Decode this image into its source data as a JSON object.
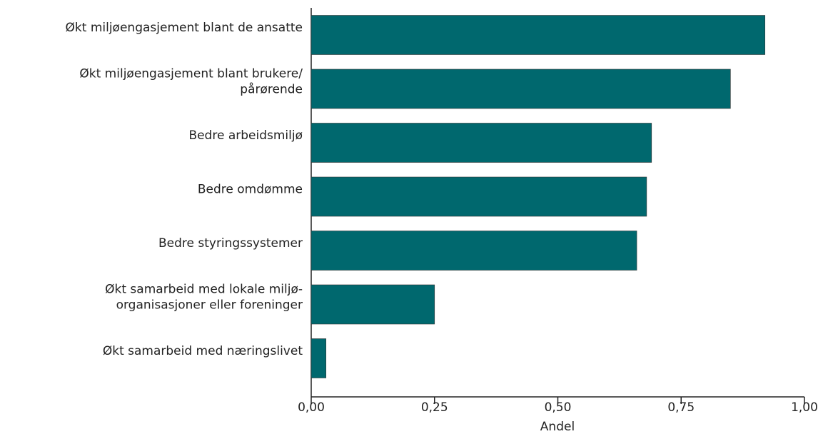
{
  "chart_data": {
    "type": "barh",
    "categories": [
      "Økt miljøengasjement blant de ansatte",
      "Økt miljøengasjement blant brukere/\npårørende",
      "Bedre arbeidsmiljø",
      "Bedre omdømme",
      "Bedre styringssystemer",
      "Økt samarbeid med lokale miljø-\norganisasjoner eller foreninger",
      "Økt samarbeid med næringslivet"
    ],
    "values": [
      0.92,
      0.85,
      0.69,
      0.68,
      0.66,
      0.25,
      0.03
    ],
    "color": "#00686e",
    "x_label": "Andel",
    "xlim": [
      0,
      1
    ],
    "xticks": [
      {
        "value": 0,
        "label": "0,00"
      },
      {
        "value": 0.25,
        "label": "0,25"
      },
      {
        "value": 0.5,
        "label": "0,50"
      },
      {
        "value": 0.75,
        "label": "0,75"
      },
      {
        "value": 1,
        "label": "1,00"
      }
    ],
    "grid": false
  }
}
